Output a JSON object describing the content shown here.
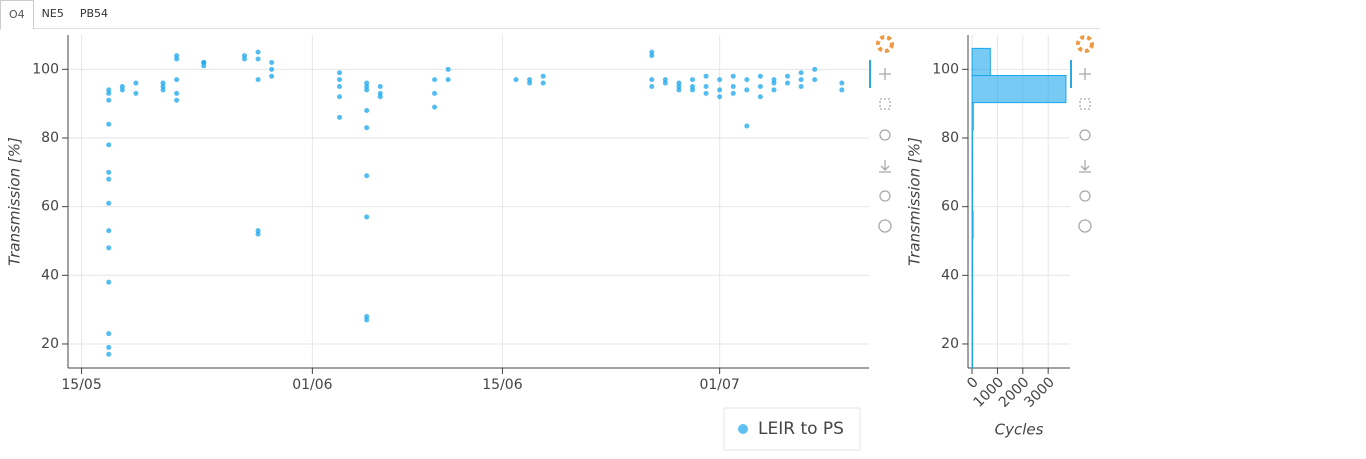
{
  "tabs": [
    "O4",
    "NE5",
    "PB54"
  ],
  "chart_data": [
    {
      "type": "scatter",
      "y_label": "Transmission [%]",
      "x": [
        "17/05",
        "17/05",
        "17/05",
        "17/05",
        "17/05",
        "17/05",
        "17/05",
        "17/05",
        "17/05",
        "17/05",
        "17/05",
        "17/05",
        "17/05",
        "17/05",
        "18/05",
        "18/05",
        "19/05",
        "19/05",
        "21/05",
        "21/05",
        "21/05",
        "22/05",
        "22/05",
        "22/05",
        "22/05",
        "22/05",
        "24/05",
        "24/05",
        "24/05",
        "27/05",
        "27/05",
        "28/05",
        "28/05",
        "28/05",
        "28/05",
        "28/05",
        "29/05",
        "29/05",
        "29/05",
        "03/06",
        "03/06",
        "03/06",
        "03/06",
        "03/06",
        "05/06",
        "05/06",
        "05/06",
        "05/06",
        "05/06",
        "05/06",
        "05/06",
        "05/06",
        "05/06",
        "06/06",
        "06/06",
        "06/06",
        "10/06",
        "10/06",
        "10/06",
        "11/06",
        "11/06",
        "16/06",
        "17/06",
        "17/06",
        "18/06",
        "18/06",
        "26/06",
        "26/06",
        "26/06",
        "26/06",
        "27/06",
        "27/06",
        "28/06",
        "28/06",
        "28/06",
        "29/06",
        "29/06",
        "29/06",
        "30/06",
        "30/06",
        "30/06",
        "01/07",
        "01/07",
        "01/07",
        "02/07",
        "02/07",
        "02/07",
        "03/07",
        "03/07",
        "03/07",
        "04/07",
        "04/07",
        "04/07",
        "05/07",
        "05/07",
        "05/07",
        "06/07",
        "06/07",
        "07/07",
        "07/07",
        "07/07",
        "08/07",
        "08/07",
        "10/07",
        "10/07"
      ],
      "series": [
        {
          "name": "LEIR to PS",
          "color": "#1aa7ec",
          "values": [
            94,
            93,
            91,
            84,
            78,
            70,
            68,
            61,
            53,
            48,
            38,
            23,
            19,
            17,
            95,
            94,
            96,
            93,
            96,
            95,
            94,
            97,
            93,
            91,
            104,
            103,
            102,
            101,
            102,
            103,
            104,
            105,
            103,
            97,
            53,
            52,
            102,
            100,
            98,
            99,
            97,
            95,
            92,
            86,
            96,
            95,
            94,
            88,
            83,
            69,
            57,
            28,
            27,
            95,
            93,
            92,
            97,
            93,
            89,
            100,
            97,
            97,
            97,
            96,
            98,
            96,
            105,
            104,
            97,
            95,
            97,
            96,
            96,
            95,
            94,
            97,
            95,
            94,
            98,
            95,
            93,
            97,
            94,
            92,
            98,
            95,
            93,
            97,
            94,
            83.5,
            98,
            95,
            92,
            97,
            96,
            94,
            98,
            96,
            99,
            97,
            95,
            100,
            97,
            96,
            94
          ]
        }
      ],
      "xlim": [
        "14/05",
        "12/07"
      ],
      "xticks": [
        "15/05",
        "01/06",
        "15/06",
        "01/07"
      ],
      "ylim": [
        13,
        110
      ],
      "yticks": [
        20,
        40,
        60,
        80,
        100
      ],
      "grid": true,
      "legend": "bottom"
    },
    {
      "type": "histogram",
      "orientation": "horizontal",
      "x_label": "Cycles",
      "y_label": "Transmission [%]",
      "color": "#1aa7ec",
      "bins": [
        11.3,
        19.2,
        27.1,
        35.0,
        42.9,
        50.8,
        58.7,
        66.6,
        74.5,
        82.4,
        90.3,
        98.2,
        106.1
      ],
      "values": [
        3,
        2,
        2,
        1,
        1,
        40,
        1,
        5,
        2,
        50,
        3700,
        720
      ],
      "xlim": [
        -160,
        3860
      ],
      "xticks": [
        0,
        1000,
        2000,
        3000
      ],
      "ylim": [
        13,
        110
      ],
      "yticks": [
        20,
        40,
        60,
        80,
        100
      ],
      "grid": true
    }
  ]
}
